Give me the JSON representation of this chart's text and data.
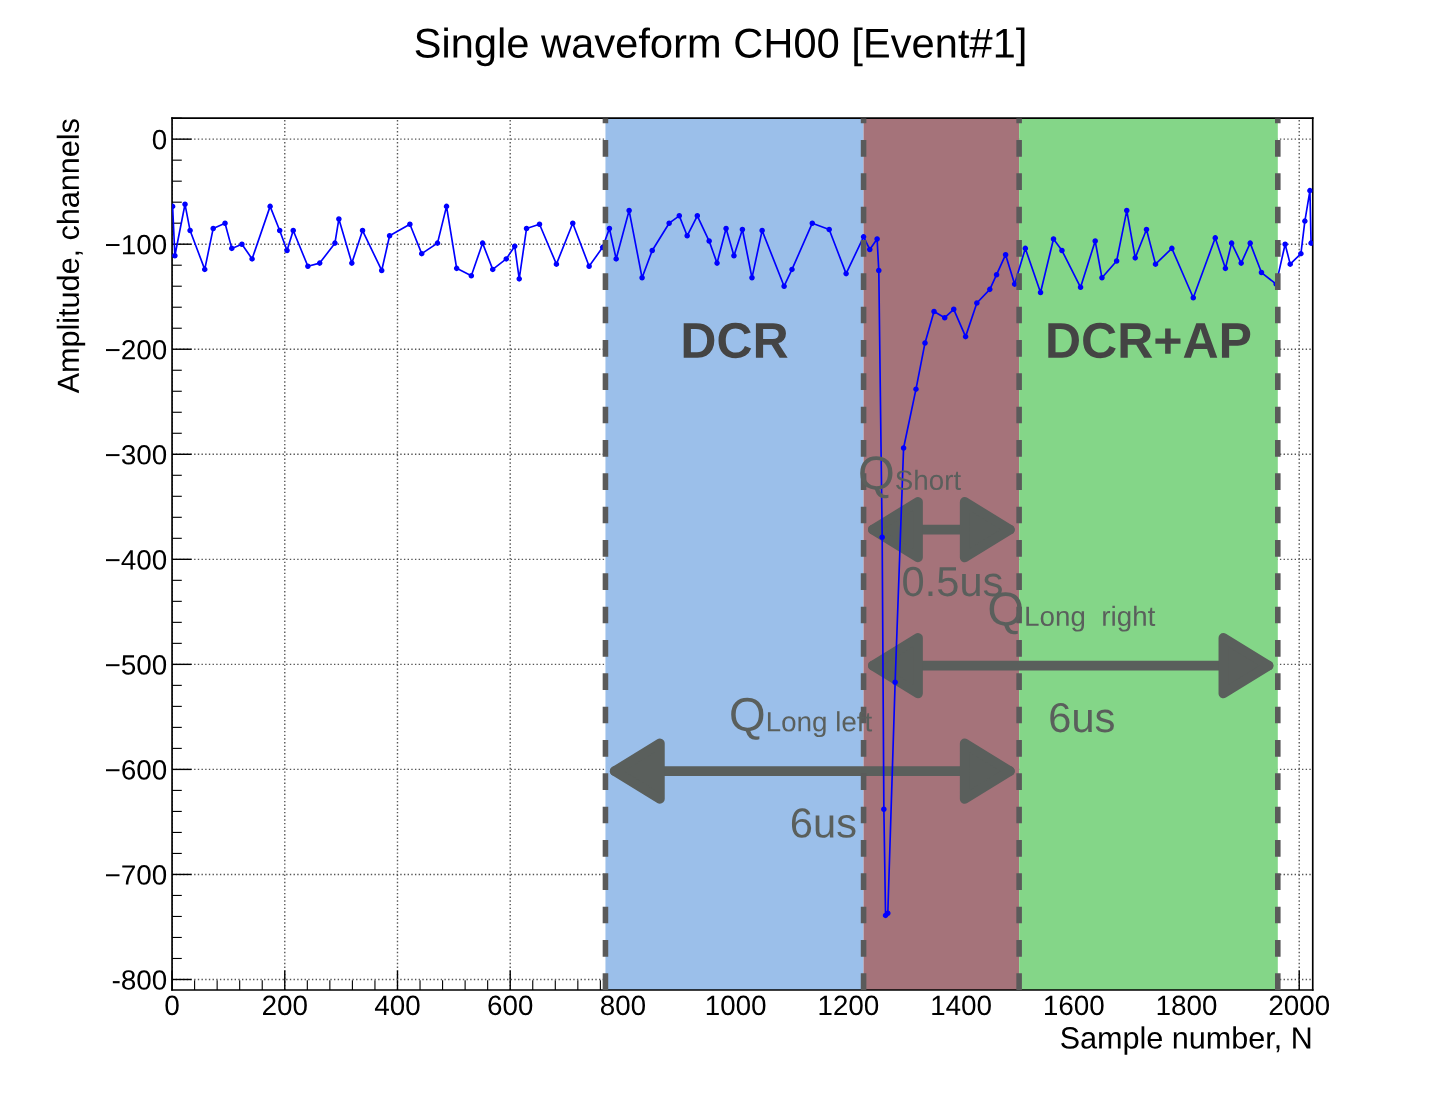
{
  "chart_data": {
    "type": "line",
    "title": "Single waveform CH00 [Event#1]",
    "xlabel": "Sample number, N",
    "ylabel": "Amplitude, channels",
    "xlim": [
      0,
      2024
    ],
    "xticks": [
      0,
      200,
      400,
      600,
      800,
      1000,
      1200,
      1400,
      1600,
      1800,
      2000
    ],
    "ylim": [
      -810,
      20
    ],
    "yticks": [
      -800,
      {
        "value": -700,
        "label": "−700"
      },
      {
        "value": -600,
        "label": "−600"
      },
      {
        "value": -500,
        "label": "−500"
      },
      {
        "value": -400,
        "label": "−400"
      },
      {
        "value": -300,
        "label": "−300"
      },
      {
        "value": -200,
        "label": "−200"
      },
      {
        "value": -100,
        "label": "−100"
      },
      0
    ],
    "grid": true,
    "marker": "circle",
    "line_style": "solid",
    "series": [
      {
        "color": "#0000ff",
        "x": [
          1,
          5,
          23,
          32,
          58,
          73,
          94,
          106,
          124,
          142,
          174,
          191,
          204,
          215,
          241,
          262,
          289,
          296,
          319,
          338,
          372,
          386,
          422,
          443,
          471,
          487,
          505,
          531,
          551,
          569,
          593,
          608,
          616,
          629,
          652,
          682,
          711,
          740,
          764,
          776,
          788,
          811,
          834,
          852,
          882,
          900,
          914,
          932,
          953,
          967,
          983,
          997,
          1012,
          1029,
          1047,
          1086,
          1100,
          1136,
          1166,
          1196,
          1227,
          1238,
          1251,
          1254,
          1260,
          1263,
          1266,
          1270,
          1283,
          1298,
          1320,
          1336,
          1352,
          1371,
          1387,
          1408,
          1428,
          1451,
          1463,
          1479,
          1495,
          1514,
          1541,
          1564,
          1579,
          1612,
          1638,
          1650,
          1676,
          1694,
          1709,
          1729,
          1745,
          1774,
          1812,
          1851,
          1869,
          1880,
          1897,
          1913,
          1933,
          1959,
          1975,
          1984,
          2003,
          2010,
          2019,
          2021
        ],
        "values": [
          -64,
          -111,
          -62,
          -87,
          -124,
          -85,
          -80,
          -104,
          -100,
          -114,
          -64,
          -87,
          -106,
          -87,
          -121,
          -118,
          -99,
          -76,
          -118,
          -87,
          -125,
          -92,
          -81,
          -109,
          -99,
          -64,
          -123,
          -130,
          -99,
          -124,
          -114,
          -102,
          -133,
          -85,
          -81,
          -119,
          -80,
          -121,
          -103,
          -85,
          -114,
          -68,
          -132,
          -106,
          -80,
          -73,
          -92,
          -73,
          -97,
          -118,
          -85,
          -111,
          -86,
          -132,
          -87,
          -140,
          -124,
          -80,
          -86,
          -128,
          -93,
          -105,
          -95,
          -125,
          -379,
          -638,
          -739,
          -737,
          -517,
          -294,
          -238,
          -194,
          -164,
          -170,
          -162,
          -188,
          -156,
          -143,
          -129,
          -110,
          -138,
          -104,
          -146,
          -95,
          -106,
          -141,
          -97,
          -132,
          -116,
          -68,
          -113,
          -86,
          -119,
          -104,
          -151,
          -94,
          -123,
          -99,
          -118,
          -99,
          -127,
          -138,
          -100,
          -119,
          -109,
          -78,
          -49,
          -99
        ]
      }
    ],
    "bands": [
      {
        "axis": "x",
        "from": 769,
        "to": 1227,
        "label": "DCR",
        "color": "#9bbfea"
      },
      {
        "axis": "x",
        "from": 1227,
        "to": 1503,
        "color": "#a5737a"
      },
      {
        "axis": "x",
        "from": 1503,
        "to": 1962,
        "label": "DCR+AP",
        "color": "#84d688"
      }
    ],
    "ref_lines": [
      {
        "axis": "x",
        "value": 769,
        "color": "#5a5a5a",
        "line_style": "dashed"
      },
      {
        "axis": "x",
        "value": 1227,
        "color": "#5a5a5a",
        "line_style": "dashed"
      },
      {
        "axis": "x",
        "value": 1503,
        "color": "#5a5a5a",
        "line_style": "dashed"
      },
      {
        "axis": "x",
        "value": 1962,
        "color": "#5a5a5a",
        "line_style": "dashed"
      }
    ],
    "annotations": [
      "Q$_{Short}$",
      "0.5us",
      "Q$_{Long  right}$",
      "6us",
      "Q$_{Long left}$",
      "6us"
    ]
  }
}
